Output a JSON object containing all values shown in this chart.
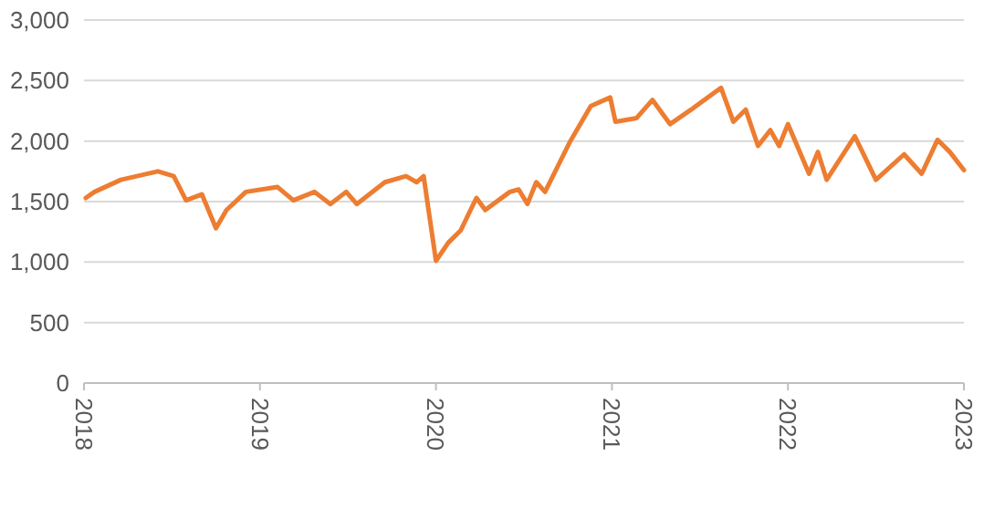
{
  "chart_data": {
    "type": "line",
    "xlim": [
      2018,
      2023
    ],
    "xticks": [
      2018,
      2019,
      2020,
      2021,
      2022,
      2023
    ],
    "ylim": [
      0,
      3000
    ],
    "yticks": [
      {
        "value": 0,
        "label": "0"
      },
      {
        "value": 500,
        "label": "500"
      },
      {
        "value": 1000,
        "label": "1,000"
      },
      {
        "value": 1500,
        "label": "1,500"
      },
      {
        "value": 2000,
        "label": "2,000"
      },
      {
        "value": 2500,
        "label": "2,500"
      },
      {
        "value": 3000,
        "label": "3,000"
      }
    ],
    "grid": "y",
    "line_style": "solid",
    "series": [
      {
        "color": "#ed7d31",
        "x": [
          2018.01,
          2018.06,
          2018.21,
          2018.42,
          2018.51,
          2018.58,
          2018.67,
          2018.75,
          2018.81,
          2018.92,
          2019.1,
          2019.19,
          2019.31,
          2019.4,
          2019.49,
          2019.55,
          2019.71,
          2019.83,
          2019.89,
          2019.93,
          2020.0,
          2020.07,
          2020.14,
          2020.23,
          2020.28,
          2020.42,
          2020.47,
          2020.52,
          2020.57,
          2020.62,
          2020.76,
          2020.88,
          2020.99,
          2021.02,
          2021.14,
          2021.23,
          2021.33,
          2021.45,
          2021.62,
          2021.69,
          2021.76,
          2021.83,
          2021.9,
          2021.95,
          2022.0,
          2022.12,
          2022.17,
          2022.22,
          2022.38,
          2022.5,
          2022.66,
          2022.76,
          2022.85,
          2022.92,
          2023.0
        ],
        "values": [
          1530,
          1580,
          1680,
          1750,
          1710,
          1510,
          1560,
          1280,
          1430,
          1580,
          1620,
          1510,
          1580,
          1480,
          1580,
          1480,
          1660,
          1710,
          1660,
          1710,
          1010,
          1160,
          1260,
          1530,
          1430,
          1580,
          1600,
          1480,
          1660,
          1580,
          1990,
          2290,
          2360,
          2160,
          2190,
          2340,
          2140,
          2260,
          2440,
          2160,
          2260,
          1960,
          2090,
          1960,
          2140,
          1730,
          1910,
          1680,
          2040,
          1680,
          1890,
          1730,
          2010,
          1910,
          1760
        ]
      }
    ]
  }
}
